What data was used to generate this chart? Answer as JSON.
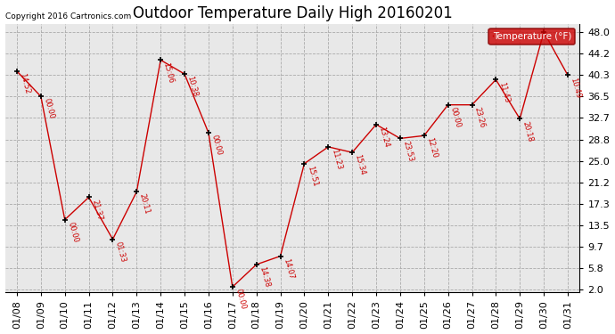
{
  "title": "Outdoor Temperature Daily High 20160201",
  "copyright": "Copyright 2016 Cartronics.com",
  "legend_label": "Temperature (°F)",
  "dates": [
    "01/08",
    "01/09",
    "01/10",
    "01/11",
    "01/12",
    "01/13",
    "01/14",
    "01/15",
    "01/16",
    "01/17",
    "01/18",
    "01/19",
    "01/20",
    "01/21",
    "01/22",
    "01/23",
    "01/24",
    "01/25",
    "01/26",
    "01/27",
    "01/28",
    "01/29",
    "01/30",
    "01/31"
  ],
  "temperatures": [
    41.0,
    36.5,
    14.5,
    18.5,
    11.0,
    19.5,
    43.0,
    40.5,
    30.0,
    2.5,
    6.5,
    8.0,
    24.5,
    27.5,
    26.5,
    31.5,
    29.0,
    29.5,
    35.0,
    35.0,
    39.5,
    32.5,
    48.0,
    40.3
  ],
  "time_labels": [
    "14:52",
    "00:00",
    "00:00",
    "21:37",
    "01:33",
    "20:11",
    "15:06",
    "10:38",
    "00:00",
    "00:00",
    "14:38",
    "14:07",
    "15:51",
    "11:23",
    "15:34",
    "13:24",
    "23:53",
    "12:20",
    "00:00",
    "23:26",
    "11:43",
    "20:18",
    "",
    "10:49"
  ],
  "line_color": "#cc0000",
  "bg_color": "#ffffff",
  "plot_bg_color": "#e8e8e8",
  "grid_color": "#aaaaaa",
  "yticks": [
    2.0,
    5.8,
    9.7,
    13.5,
    17.3,
    21.2,
    25.0,
    28.8,
    32.7,
    36.5,
    40.3,
    44.2,
    48.0
  ],
  "ylim": [
    1.5,
    49.5
  ],
  "title_fontsize": 12,
  "tick_fontsize": 8
}
